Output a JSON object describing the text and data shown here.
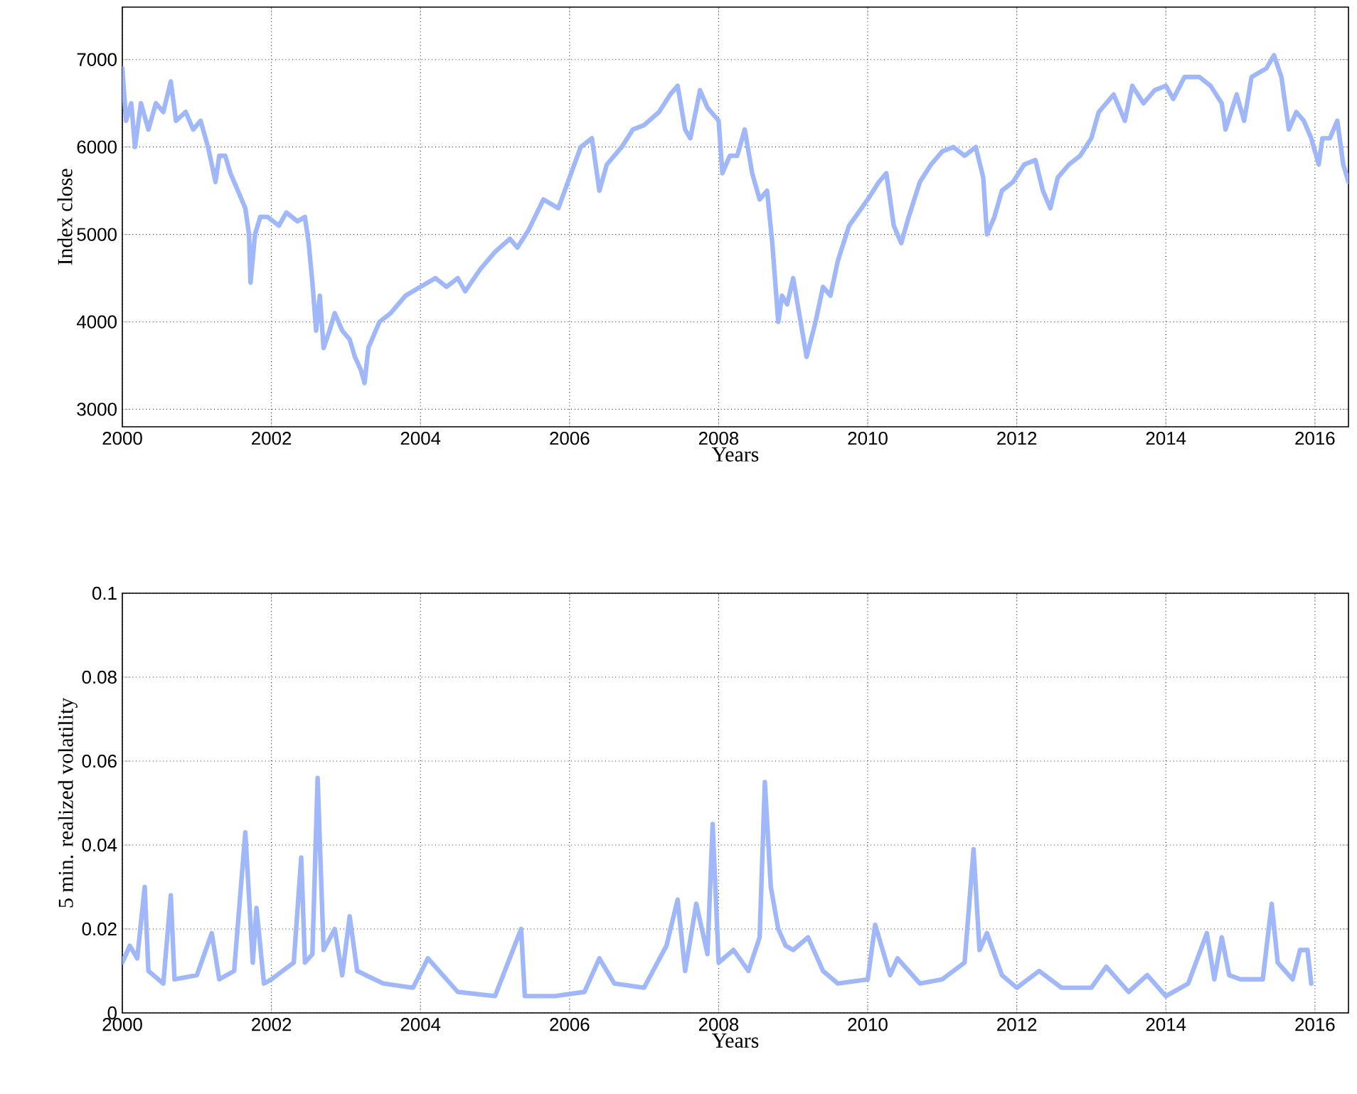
{
  "chart_data": [
    {
      "type": "line",
      "xlabel": "Years",
      "ylabel": "Index close",
      "xlim": [
        2000,
        2016.45
      ],
      "ylim": [
        2800,
        7600
      ],
      "xticks": [
        2000,
        2002,
        2004,
        2006,
        2008,
        2010,
        2012,
        2014,
        2016
      ],
      "yticks": [
        3000,
        4000,
        5000,
        6000,
        7000
      ],
      "grid": true,
      "line_style": "solid",
      "series": [
        {
          "color": "#a0b8fa",
          "x": [
            2000.0,
            2000.05,
            2000.12,
            2000.17,
            2000.25,
            2000.35,
            2000.45,
            2000.55,
            2000.65,
            2000.72,
            2000.85,
            2000.95,
            2001.05,
            2001.15,
            2001.25,
            2001.3,
            2001.38,
            2001.45,
            2001.55,
            2001.65,
            2001.7,
            2001.72,
            2001.78,
            2001.85,
            2001.95,
            2002.1,
            2002.2,
            2002.35,
            2002.45,
            2002.5,
            2002.55,
            2002.6,
            2002.65,
            2002.7,
            2002.78,
            2002.85,
            2002.95,
            2003.05,
            2003.12,
            2003.2,
            2003.25,
            2003.3,
            2003.45,
            2003.6,
            2003.8,
            2004.0,
            2004.2,
            2004.35,
            2004.5,
            2004.6,
            2004.8,
            2005.0,
            2005.2,
            2005.3,
            2005.45,
            2005.65,
            2005.85,
            2006.0,
            2006.15,
            2006.3,
            2006.4,
            2006.5,
            2006.7,
            2006.85,
            2007.0,
            2007.2,
            2007.35,
            2007.45,
            2007.55,
            2007.62,
            2007.75,
            2007.85,
            2008.0,
            2008.05,
            2008.15,
            2008.25,
            2008.35,
            2008.45,
            2008.55,
            2008.65,
            2008.72,
            2008.8,
            2008.85,
            2008.92,
            2009.0,
            2009.1,
            2009.18,
            2009.3,
            2009.4,
            2009.5,
            2009.6,
            2009.75,
            2010.0,
            2010.15,
            2010.25,
            2010.35,
            2010.45,
            2010.55,
            2010.7,
            2010.85,
            2011.0,
            2011.15,
            2011.3,
            2011.45,
            2011.55,
            2011.6,
            2011.7,
            2011.8,
            2011.95,
            2012.1,
            2012.25,
            2012.35,
            2012.45,
            2012.55,
            2012.7,
            2012.85,
            2013.0,
            2013.1,
            2013.3,
            2013.45,
            2013.55,
            2013.7,
            2013.85,
            2014.0,
            2014.1,
            2014.25,
            2014.45,
            2014.6,
            2014.75,
            2014.8,
            2014.95,
            2015.05,
            2015.15,
            2015.35,
            2015.45,
            2015.55,
            2015.65,
            2015.75,
            2015.85,
            2015.95,
            2016.05,
            2016.1,
            2016.2,
            2016.3,
            2016.38,
            2016.45
          ],
          "values": [
            6900,
            6300,
            6500,
            6000,
            6500,
            6200,
            6500,
            6400,
            6750,
            6300,
            6400,
            6200,
            6300,
            6000,
            5600,
            5900,
            5900,
            5700,
            5500,
            5300,
            5000,
            4450,
            5000,
            5200,
            5200,
            5100,
            5250,
            5150,
            5200,
            4900,
            4450,
            3900,
            4300,
            3700,
            3900,
            4100,
            3900,
            3800,
            3600,
            3450,
            3300,
            3700,
            4000,
            4100,
            4300,
            4400,
            4500,
            4400,
            4500,
            4350,
            4600,
            4800,
            4950,
            4850,
            5050,
            5400,
            5300,
            5650,
            6000,
            6100,
            5500,
            5800,
            6000,
            6200,
            6250,
            6400,
            6600,
            6700,
            6200,
            6100,
            6650,
            6450,
            6300,
            5700,
            5900,
            5900,
            6200,
            5700,
            5400,
            5500,
            4900,
            4000,
            4300,
            4200,
            4500,
            4000,
            3600,
            4000,
            4400,
            4300,
            4700,
            5100,
            5400,
            5600,
            5700,
            5100,
            4900,
            5200,
            5600,
            5800,
            5950,
            6000,
            5900,
            6000,
            5650,
            5000,
            5200,
            5500,
            5600,
            5800,
            5850,
            5500,
            5300,
            5650,
            5800,
            5900,
            6100,
            6400,
            6600,
            6300,
            6700,
            6500,
            6650,
            6700,
            6550,
            6800,
            6800,
            6700,
            6500,
            6200,
            6600,
            6300,
            6800,
            6900,
            7050,
            6800,
            6200,
            6400,
            6300,
            6100,
            5800,
            6100,
            6100,
            6300,
            5800,
            5600
          ]
        }
      ]
    },
    {
      "type": "line",
      "xlabel": "Years",
      "ylabel": "5 min. realized volatility",
      "xlim": [
        2000,
        2016.45
      ],
      "ylim": [
        0,
        0.1
      ],
      "xticks": [
        2000,
        2002,
        2004,
        2006,
        2008,
        2010,
        2012,
        2014,
        2016
      ],
      "yticks": [
        0,
        0.02,
        0.04,
        0.06,
        0.08,
        0.1
      ],
      "grid": true,
      "line_style": "solid",
      "series": [
        {
          "color": "#a0b8fa",
          "x": [
            2000.0,
            2000.1,
            2000.2,
            2000.3,
            2000.35,
            2000.55,
            2000.65,
            2000.7,
            2001.0,
            2001.2,
            2001.3,
            2001.5,
            2001.65,
            2001.75,
            2001.8,
            2001.9,
            2002.0,
            2002.3,
            2002.4,
            2002.45,
            2002.55,
            2002.62,
            2002.7,
            2002.85,
            2002.95,
            2003.05,
            2003.15,
            2003.5,
            2003.9,
            2004.1,
            2004.5,
            2005.0,
            2005.35,
            2005.4,
            2005.8,
            2006.2,
            2006.4,
            2006.6,
            2007.0,
            2007.3,
            2007.45,
            2007.55,
            2007.7,
            2007.85,
            2007.92,
            2008.0,
            2008.2,
            2008.4,
            2008.55,
            2008.62,
            2008.7,
            2008.8,
            2008.9,
            2009.0,
            2009.2,
            2009.4,
            2009.6,
            2010.0,
            2010.1,
            2010.3,
            2010.4,
            2010.7,
            2011.0,
            2011.3,
            2011.42,
            2011.5,
            2011.6,
            2011.8,
            2012.0,
            2012.3,
            2012.6,
            2013.0,
            2013.2,
            2013.5,
            2013.75,
            2014.0,
            2014.3,
            2014.55,
            2014.65,
            2014.75,
            2014.85,
            2015.0,
            2015.3,
            2015.42,
            2015.5,
            2015.7,
            2015.8,
            2015.9,
            2015.95
          ],
          "values": [
            0.012,
            0.016,
            0.013,
            0.03,
            0.01,
            0.007,
            0.028,
            0.008,
            0.009,
            0.019,
            0.008,
            0.01,
            0.043,
            0.012,
            0.025,
            0.007,
            0.008,
            0.012,
            0.037,
            0.012,
            0.014,
            0.056,
            0.015,
            0.02,
            0.009,
            0.023,
            0.01,
            0.007,
            0.006,
            0.013,
            0.005,
            0.004,
            0.02,
            0.004,
            0.004,
            0.005,
            0.013,
            0.007,
            0.006,
            0.016,
            0.027,
            0.01,
            0.026,
            0.014,
            0.045,
            0.012,
            0.015,
            0.01,
            0.018,
            0.055,
            0.03,
            0.02,
            0.016,
            0.015,
            0.018,
            0.01,
            0.007,
            0.008,
            0.021,
            0.009,
            0.013,
            0.007,
            0.008,
            0.012,
            0.039,
            0.015,
            0.019,
            0.009,
            0.006,
            0.01,
            0.006,
            0.006,
            0.011,
            0.005,
            0.009,
            0.004,
            0.007,
            0.019,
            0.008,
            0.018,
            0.009,
            0.008,
            0.008,
            0.026,
            0.012,
            0.008,
            0.015,
            0.015,
            0.007
          ]
        }
      ]
    }
  ]
}
